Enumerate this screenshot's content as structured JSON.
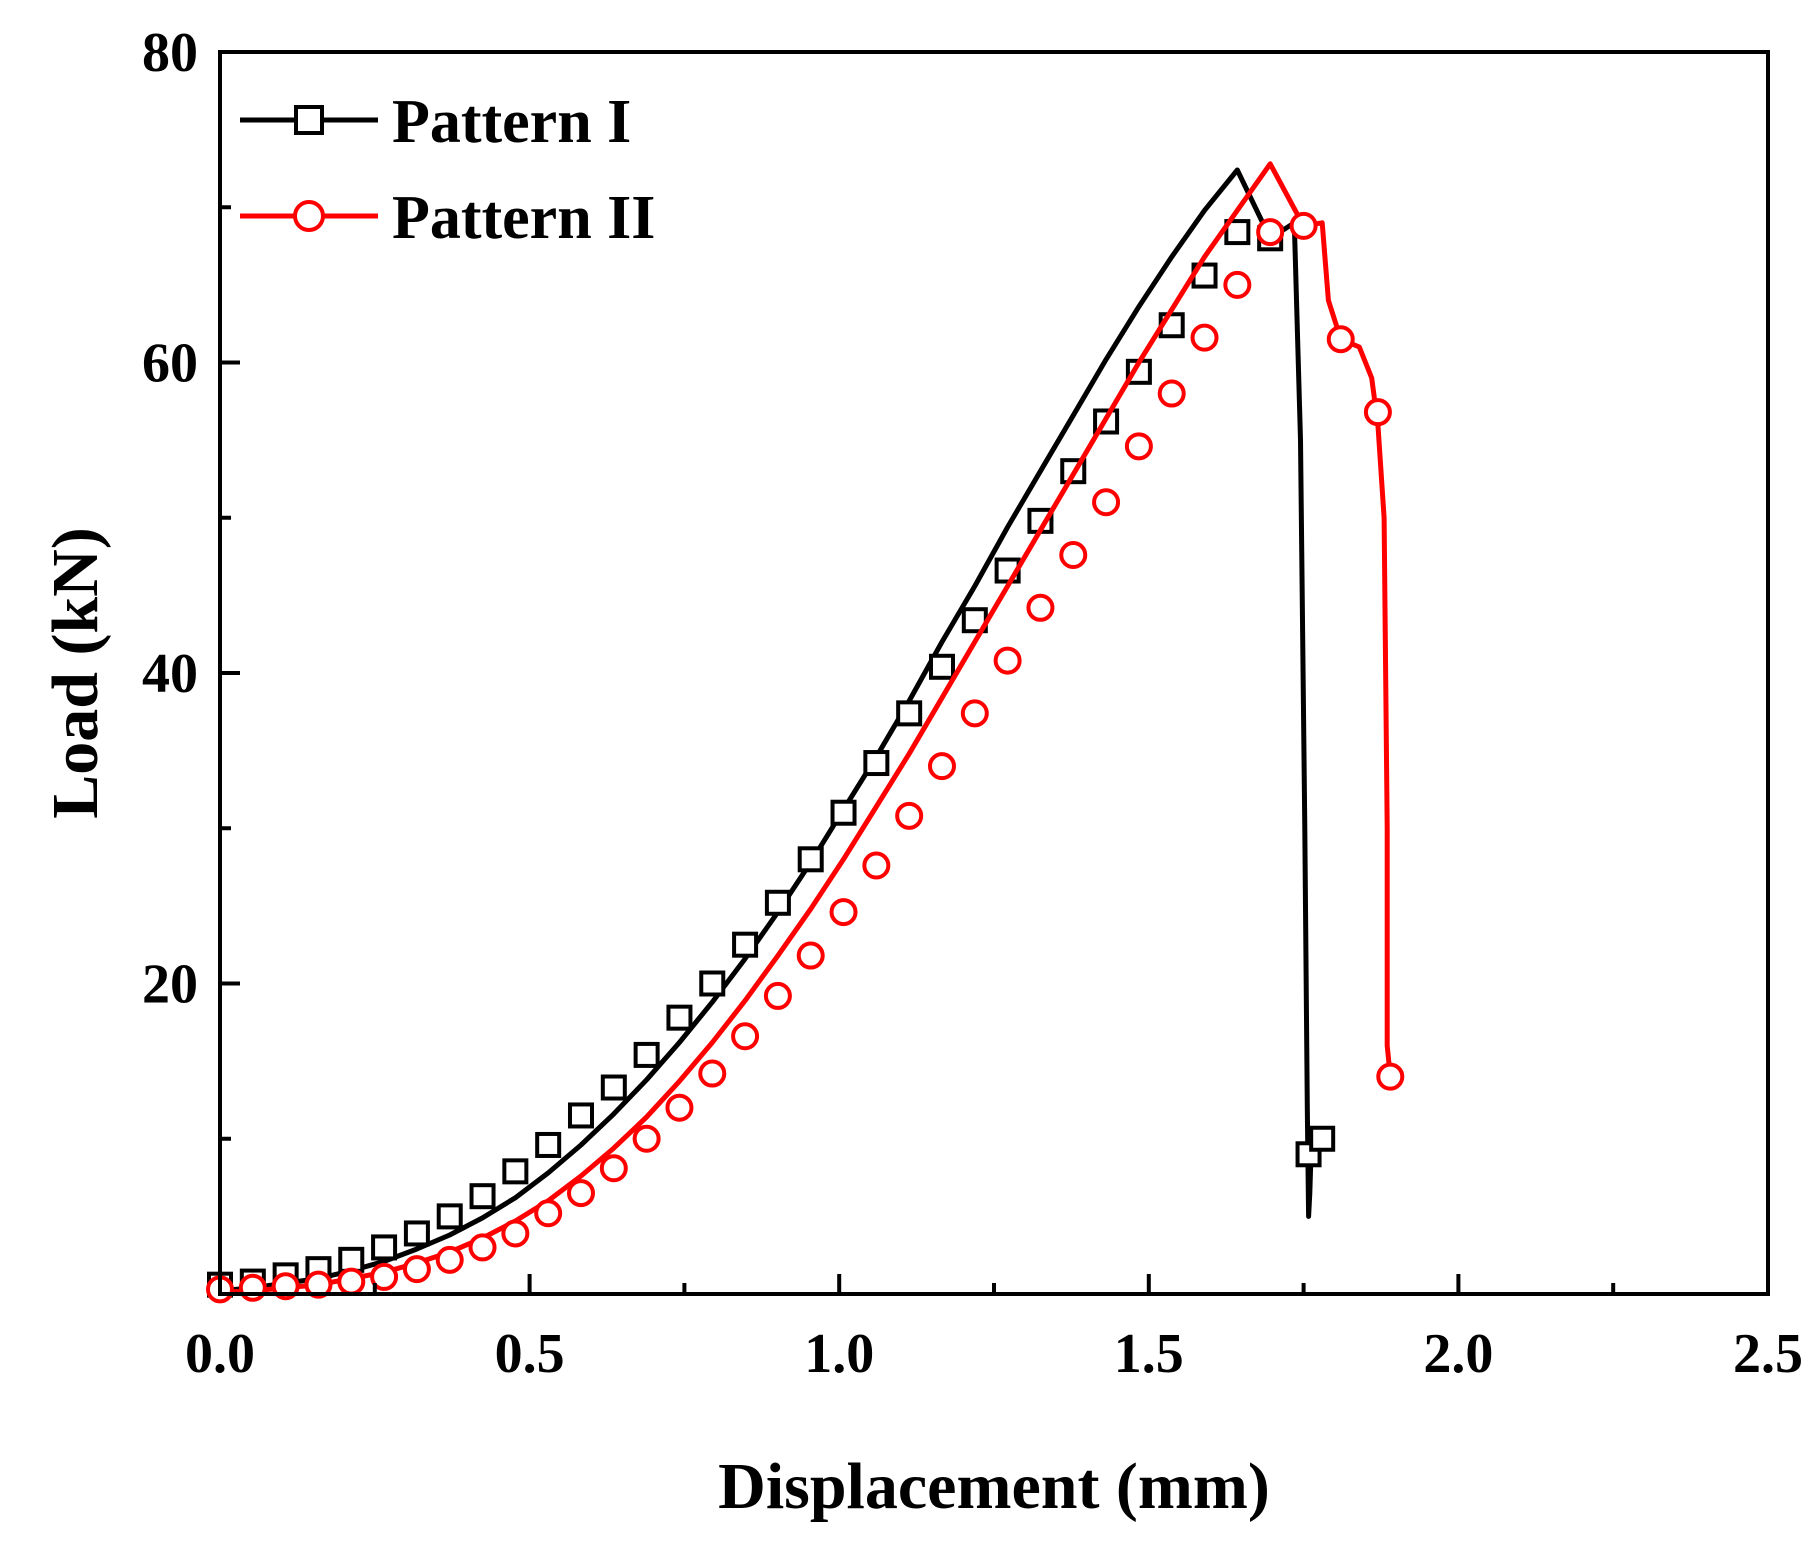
{
  "chart_data": {
    "type": "line",
    "title": "",
    "xlabel": "Displacement (mm)",
    "ylabel": "Load (kN)",
    "xlim": [
      0,
      2.5
    ],
    "ylim": [
      0,
      80
    ],
    "x_ticks": [
      "0.0",
      "0.5",
      "1.0",
      "1.5",
      "2.0",
      "2.5"
    ],
    "y_ticks": [
      "20",
      "40",
      "60",
      "80"
    ],
    "legend_position": "top-left",
    "grid": false,
    "series": [
      {
        "name": "Pattern I",
        "color": "#000000",
        "marker": "square",
        "x": [
          0,
          0.053,
          0.106,
          0.159,
          0.212,
          0.265,
          0.318,
          0.371,
          0.424,
          0.477,
          0.53,
          0.583,
          0.636,
          0.689,
          0.742,
          0.795,
          0.848,
          0.901,
          0.954,
          1.007,
          1.06,
          1.113,
          1.166,
          1.219,
          1.272,
          1.325,
          1.378,
          1.431,
          1.484,
          1.537,
          1.59,
          1.643,
          1.696,
          1.735,
          1.745,
          1.752,
          1.756,
          1.758,
          1.76,
          1.762,
          1.765,
          1.77
        ],
        "y": [
          0.2,
          0.4,
          0.7,
          1.0,
          1.5,
          2.1,
          2.9,
          3.8,
          4.9,
          6.2,
          7.8,
          9.6,
          11.6,
          13.8,
          16.2,
          18.8,
          21.6,
          24.6,
          27.8,
          31.2,
          34.6,
          38.2,
          42.0,
          45.6,
          49.4,
          53.0,
          56.6,
          60.2,
          63.6,
          66.8,
          69.8,
          72.4,
          68.0,
          69.0,
          55.0,
          30.0,
          12.0,
          5.0,
          6.5,
          9.0,
          10.0,
          10.0
        ],
        "markers_x": [
          0,
          0.053,
          0.106,
          0.159,
          0.212,
          0.265,
          0.318,
          0.371,
          0.424,
          0.477,
          0.53,
          0.583,
          0.636,
          0.689,
          0.742,
          0.795,
          0.848,
          0.901,
          0.954,
          1.007,
          1.06,
          1.113,
          1.166,
          1.219,
          1.272,
          1.325,
          1.378,
          1.431,
          1.484,
          1.537,
          1.59,
          1.643,
          1.696,
          1.758,
          1.78
        ],
        "markers_y": [
          0.6,
          0.8,
          1.2,
          1.6,
          2.2,
          3.0,
          3.9,
          5.0,
          6.3,
          7.9,
          9.6,
          11.5,
          13.3,
          15.4,
          17.8,
          20.0,
          22.5,
          25.2,
          28.0,
          31.0,
          34.2,
          37.4,
          40.4,
          43.4,
          46.6,
          49.8,
          53.0,
          56.2,
          59.4,
          62.4,
          65.6,
          68.4,
          68.0,
          9.0,
          10.0
        ]
      },
      {
        "name": "Pattern II",
        "color": "#ff0000",
        "marker": "circle",
        "x": [
          0,
          0.053,
          0.106,
          0.159,
          0.212,
          0.265,
          0.318,
          0.371,
          0.424,
          0.477,
          0.53,
          0.583,
          0.636,
          0.689,
          0.742,
          0.795,
          0.848,
          0.901,
          0.954,
          1.007,
          1.06,
          1.113,
          1.166,
          1.219,
          1.272,
          1.325,
          1.378,
          1.431,
          1.484,
          1.537,
          1.59,
          1.643,
          1.696,
          1.75,
          1.78,
          1.79,
          1.81,
          1.84,
          1.86,
          1.87,
          1.88,
          1.885,
          1.885,
          1.89
        ],
        "y": [
          0.1,
          0.2,
          0.4,
          0.6,
          1.0,
          1.4,
          2.0,
          2.7,
          3.6,
          4.7,
          6.0,
          7.6,
          9.4,
          11.4,
          13.7,
          16.2,
          18.9,
          21.8,
          24.8,
          28.0,
          31.4,
          34.8,
          38.4,
          42.0,
          45.6,
          49.2,
          52.8,
          56.4,
          60.0,
          63.4,
          66.8,
          69.8,
          72.8,
          68.8,
          69.0,
          64.0,
          61.5,
          61.0,
          59.0,
          56.0,
          50.0,
          30.0,
          16.0,
          14.0
        ],
        "markers_x": [
          0,
          0.053,
          0.106,
          0.159,
          0.212,
          0.265,
          0.318,
          0.371,
          0.424,
          0.477,
          0.53,
          0.583,
          0.636,
          0.689,
          0.742,
          0.795,
          0.848,
          0.901,
          0.954,
          1.007,
          1.06,
          1.113,
          1.166,
          1.219,
          1.272,
          1.325,
          1.378,
          1.431,
          1.484,
          1.537,
          1.59,
          1.643,
          1.696,
          1.75,
          1.81,
          1.87,
          1.89
        ],
        "markers_y": [
          0.3,
          0.4,
          0.5,
          0.6,
          0.8,
          1.1,
          1.6,
          2.2,
          3.0,
          3.9,
          5.2,
          6.5,
          8.1,
          10.0,
          12.0,
          14.2,
          16.6,
          19.2,
          21.8,
          24.6,
          27.6,
          30.8,
          34.0,
          37.4,
          40.8,
          44.2,
          47.6,
          51.0,
          54.6,
          58.0,
          61.6,
          65.0,
          68.4,
          68.8,
          61.5,
          56.8,
          14.0
        ]
      }
    ]
  }
}
